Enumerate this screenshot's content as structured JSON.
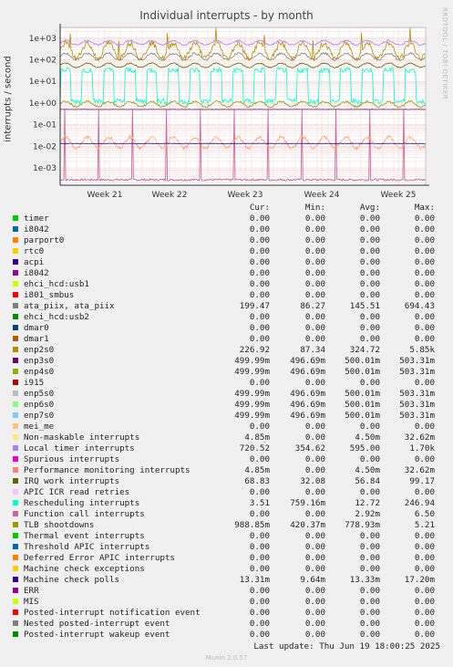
{
  "chart_data": {
    "type": "line",
    "title": "Individual interrupts - by month",
    "ylabel": "interrupts / second",
    "yscale": "log",
    "y_ticks": [
      "1e+03",
      "1e+02",
      "1e+01",
      "1e+00",
      "1e-01",
      "1e-02",
      "1e-03"
    ],
    "x_ticks": [
      "Week 21",
      "Week 22",
      "Week 23",
      "Week 24",
      "Week 25"
    ],
    "side_note": "RRDTOOL / TOBI OETIKER",
    "columns": [
      "Cur:",
      "Min:",
      "Avg:",
      "Max:"
    ],
    "series": [
      {
        "name": "timer",
        "color": "#00cc00",
        "cur": "0.00",
        "min": "0.00",
        "avg": "0.00",
        "max": "0.00"
      },
      {
        "name": "i8042",
        "color": "#0066b3",
        "cur": "0.00",
        "min": "0.00",
        "avg": "0.00",
        "max": "0.00"
      },
      {
        "name": "parport0",
        "color": "#ff8000",
        "cur": "0.00",
        "min": "0.00",
        "avg": "0.00",
        "max": "0.00"
      },
      {
        "name": "rtc0",
        "color": "#ffcc00",
        "cur": "0.00",
        "min": "0.00",
        "avg": "0.00",
        "max": "0.00"
      },
      {
        "name": "acpi",
        "color": "#330099",
        "cur": "0.00",
        "min": "0.00",
        "avg": "0.00",
        "max": "0.00"
      },
      {
        "name": "i8042",
        "color": "#990099",
        "cur": "0.00",
        "min": "0.00",
        "avg": "0.00",
        "max": "0.00"
      },
      {
        "name": "ehci_hcd:usb1",
        "color": "#ccff00",
        "cur": "0.00",
        "min": "0.00",
        "avg": "0.00",
        "max": "0.00"
      },
      {
        "name": "i801_smbus",
        "color": "#ff0000",
        "cur": "0.00",
        "min": "0.00",
        "avg": "0.00",
        "max": "0.00"
      },
      {
        "name": "ata_piix, ata_piix",
        "color": "#808080",
        "cur": "199.47",
        "min": "86.27",
        "avg": "145.51",
        "max": "694.43"
      },
      {
        "name": "ehci_hcd:usb2",
        "color": "#008f00",
        "cur": "0.00",
        "min": "0.00",
        "avg": "0.00",
        "max": "0.00"
      },
      {
        "name": "dmar0",
        "color": "#00487d",
        "cur": "0.00",
        "min": "0.00",
        "avg": "0.00",
        "max": "0.00"
      },
      {
        "name": "dmar1",
        "color": "#b35a00",
        "cur": "0.00",
        "min": "0.00",
        "avg": "0.00",
        "max": "0.00"
      },
      {
        "name": "enp2s0",
        "color": "#b38f00",
        "cur": "226.92",
        "min": "87.34",
        "avg": "324.72",
        "max": "5.85k"
      },
      {
        "name": "enp3s0",
        "color": "#6b006b",
        "cur": "499.99m",
        "min": "496.69m",
        "avg": "500.01m",
        "max": "503.31m"
      },
      {
        "name": "enp4s0",
        "color": "#8fb300",
        "cur": "499.99m",
        "min": "496.69m",
        "avg": "500.01m",
        "max": "503.31m"
      },
      {
        "name": "i915",
        "color": "#b30000",
        "cur": "0.00",
        "min": "0.00",
        "avg": "0.00",
        "max": "0.00"
      },
      {
        "name": "enp5s0",
        "color": "#bebebe",
        "cur": "499.99m",
        "min": "496.69m",
        "avg": "500.01m",
        "max": "503.31m"
      },
      {
        "name": "enp6s0",
        "color": "#80ff80",
        "cur": "499.99m",
        "min": "496.69m",
        "avg": "500.01m",
        "max": "503.31m"
      },
      {
        "name": "enp7s0",
        "color": "#80c9ff",
        "cur": "499.99m",
        "min": "496.69m",
        "avg": "500.01m",
        "max": "503.31m"
      },
      {
        "name": "mei_me",
        "color": "#ffc080",
        "cur": "0.00",
        "min": "0.00",
        "avg": "0.00",
        "max": "0.00"
      },
      {
        "name": "Non-maskable interrupts",
        "color": "#ffe680",
        "cur": "4.85m",
        "min": "0.00",
        "avg": "4.50m",
        "max": "32.62m"
      },
      {
        "name": "Local timer interrupts",
        "color": "#aa80ff",
        "cur": "720.52",
        "min": "354.62",
        "avg": "595.00",
        "max": "1.70k"
      },
      {
        "name": "Spurious interrupts",
        "color": "#ee00cc",
        "cur": "0.00",
        "min": "0.00",
        "avg": "0.00",
        "max": "0.00"
      },
      {
        "name": "Performance monitoring interrupts",
        "color": "#ff8080",
        "cur": "4.85m",
        "min": "0.00",
        "avg": "4.50m",
        "max": "32.62m"
      },
      {
        "name": "IRQ work interrupts",
        "color": "#666600",
        "cur": "68.83",
        "min": "32.08",
        "avg": "56.84",
        "max": "99.17"
      },
      {
        "name": "APIC ICR read retries",
        "color": "#ffbfff",
        "cur": "0.00",
        "min": "0.00",
        "avg": "0.00",
        "max": "0.00"
      },
      {
        "name": "Rescheduling interrupts",
        "color": "#00ffcc",
        "cur": "3.51",
        "min": "759.16m",
        "avg": "12.72",
        "max": "246.94"
      },
      {
        "name": "Function call interrupts",
        "color": "#cc6699",
        "cur": "0.00",
        "min": "0.00",
        "avg": "2.92m",
        "max": "6.50"
      },
      {
        "name": "TLB shootdowns",
        "color": "#999900",
        "cur": "988.85m",
        "min": "420.37m",
        "avg": "778.93m",
        "max": "5.21"
      },
      {
        "name": "Thermal event interrupts",
        "color": "#00cc00",
        "cur": "0.00",
        "min": "0.00",
        "avg": "0.00",
        "max": "0.00"
      },
      {
        "name": "Threshold APIC interrupts",
        "color": "#0066b3",
        "cur": "0.00",
        "min": "0.00",
        "avg": "0.00",
        "max": "0.00"
      },
      {
        "name": "Deferred Error APIC interrupts",
        "color": "#ff8000",
        "cur": "0.00",
        "min": "0.00",
        "avg": "0.00",
        "max": "0.00"
      },
      {
        "name": "Machine check exceptions",
        "color": "#ffcc00",
        "cur": "0.00",
        "min": "0.00",
        "avg": "0.00",
        "max": "0.00"
      },
      {
        "name": "Machine check polls",
        "color": "#330099",
        "cur": "13.31m",
        "min": "9.64m",
        "avg": "13.33m",
        "max": "17.20m"
      },
      {
        "name": "ERR",
        "color": "#990099",
        "cur": "0.00",
        "min": "0.00",
        "avg": "0.00",
        "max": "0.00"
      },
      {
        "name": "MIS",
        "color": "#ccff00",
        "cur": "0.00",
        "min": "0.00",
        "avg": "0.00",
        "max": "0.00"
      },
      {
        "name": "Posted-interrupt notification event",
        "color": "#ff0000",
        "cur": "0.00",
        "min": "0.00",
        "avg": "0.00",
        "max": "0.00"
      },
      {
        "name": "Nested posted-interrupt event",
        "color": "#808080",
        "cur": "0.00",
        "min": "0.00",
        "avg": "0.00",
        "max": "0.00"
      },
      {
        "name": "Posted-interrupt wakeup event",
        "color": "#008f00",
        "cur": "0.00",
        "min": "0.00",
        "avg": "0.00",
        "max": "0.00"
      }
    ],
    "last_update": "Last update: Thu Jun 19 18:00:25 2025",
    "version": "Munin 2.0.57"
  }
}
